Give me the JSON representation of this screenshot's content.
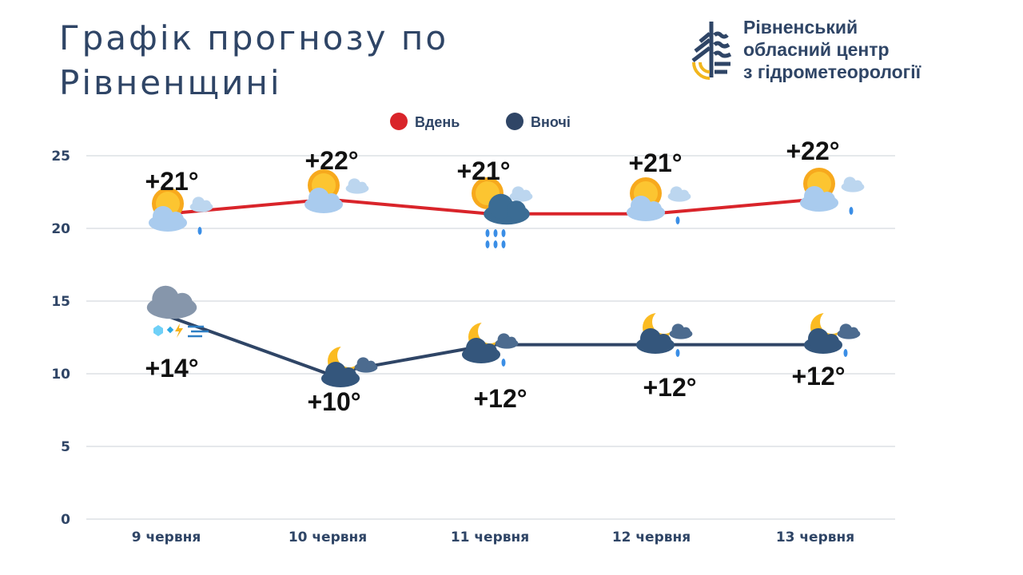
{
  "title": "Графік прогнозу по Рівненщині",
  "logo": {
    "lines": [
      "Рівненський",
      "обласний центр",
      "з гідрометеорології"
    ]
  },
  "chart_data": {
    "type": "line",
    "categories": [
      "9 червня",
      "10 червня",
      "11 червня",
      "12 червня",
      "13 червня"
    ],
    "series": [
      {
        "name": "Вдень",
        "color": "#d9242a",
        "values": [
          21,
          22,
          21,
          21,
          22
        ],
        "labels": [
          "+21°",
          "+22°",
          "+21°",
          "+21°",
          "+22°"
        ],
        "icons": [
          "partly-cloudy-rain",
          "partly-cloudy",
          "partly-cloudy-heavy-rain",
          "partly-cloudy-rain",
          "partly-cloudy-rain"
        ]
      },
      {
        "name": "Вночі",
        "color": "#2f4566",
        "values": [
          14,
          10,
          12,
          12,
          12
        ],
        "labels": [
          "+14°",
          "+10°",
          "+12°",
          "+12°",
          "+12°"
        ],
        "icons": [
          "cloud-hail-thunder-wind",
          "moon-cloudy",
          "moon-cloudy-rain",
          "moon-cloudy-rain",
          "moon-cloudy-rain"
        ]
      }
    ],
    "ylim": [
      0,
      25
    ],
    "yticks": [
      0,
      5,
      10,
      15,
      20,
      25
    ],
    "grid": true,
    "legend": "top-center"
  }
}
